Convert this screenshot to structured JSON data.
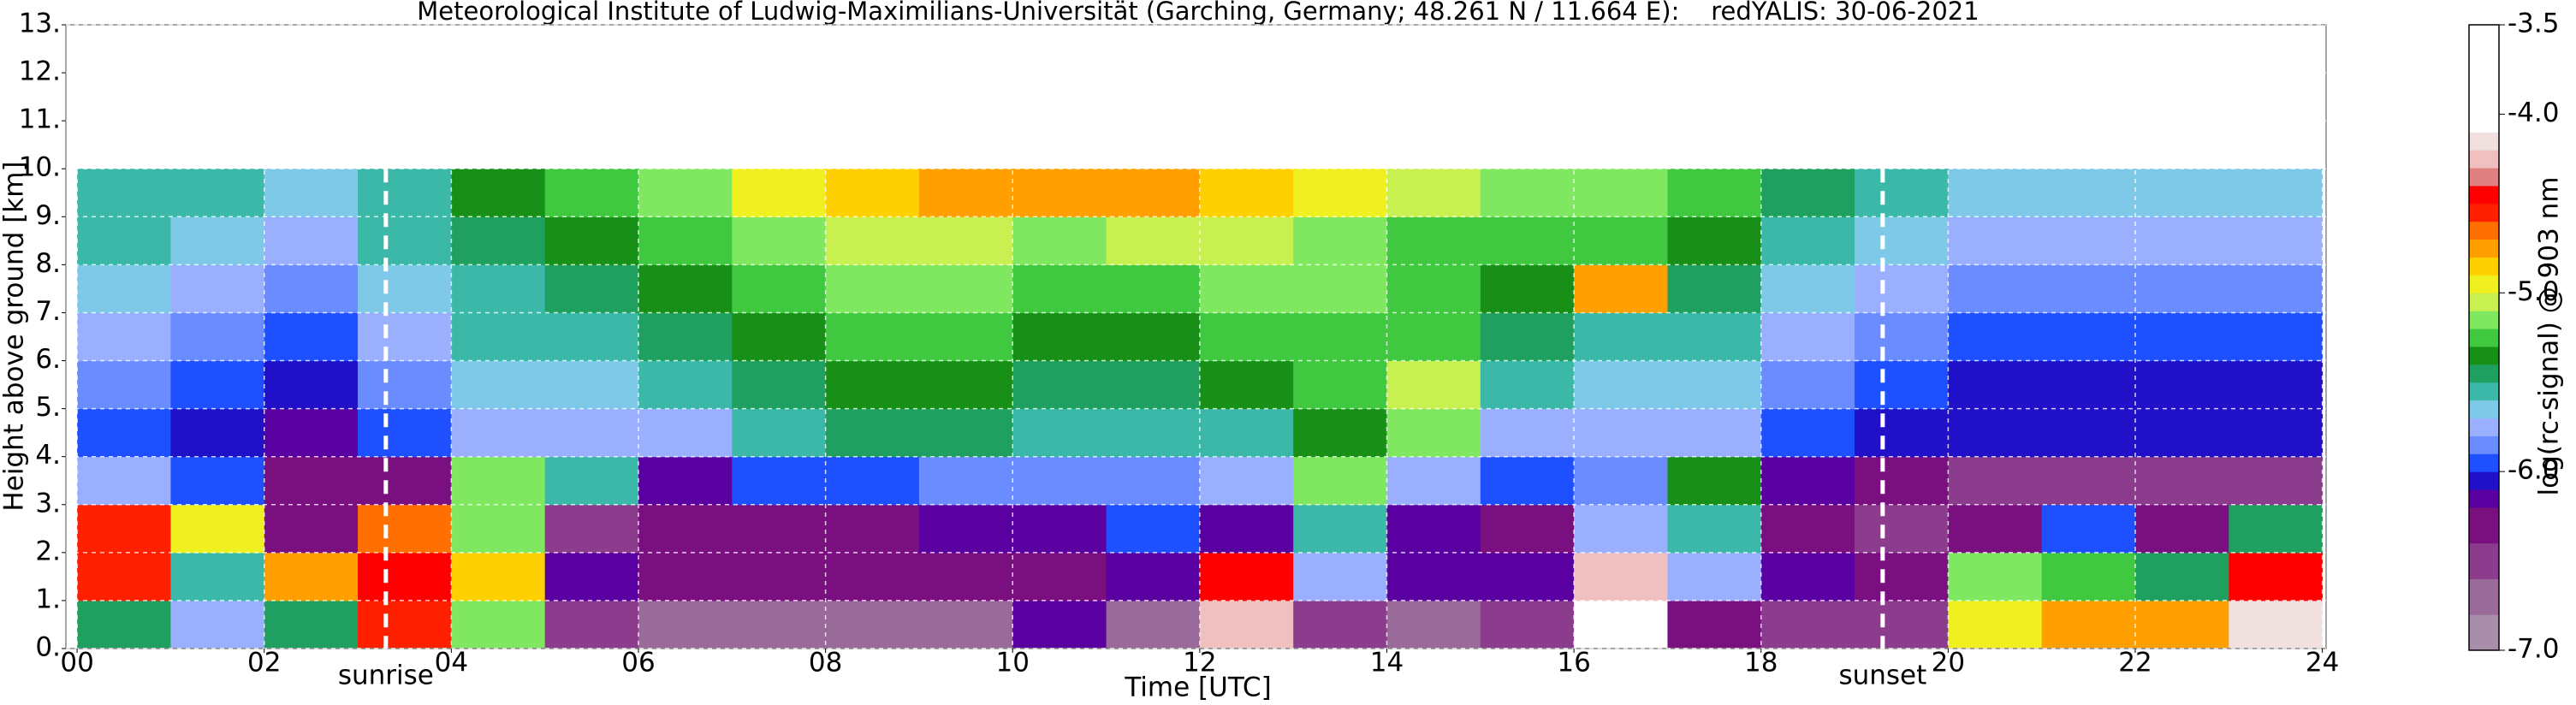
{
  "chart_data": {
    "type": "heatmap",
    "title": "Meteorological Institute of Ludwig-Maximilians-Universität (Garching, Germany; 48.261 N / 11.664 E):    redYALIS: 30-06-2021",
    "xlabel": "Time [UTC]",
    "ylabel": "Height above ground [km]",
    "colorbar_label": "log(rc-signal) @ 903 nm",
    "xlim": [
      -0.12,
      24.04
    ],
    "ylim": [
      0,
      13
    ],
    "xticks": [
      {
        "value": 0,
        "label": "00"
      },
      {
        "value": 2,
        "label": "02"
      },
      {
        "value": 4,
        "label": "04"
      },
      {
        "value": 6,
        "label": "06"
      },
      {
        "value": 8,
        "label": "08"
      },
      10,
      12,
      14,
      16,
      18,
      20,
      22,
      24
    ],
    "yticks": [
      {
        "value": 0,
        "label": "0."
      },
      {
        "value": 1,
        "label": "1."
      },
      {
        "value": 2,
        "label": "2."
      },
      {
        "value": 3,
        "label": "3."
      },
      {
        "value": 4,
        "label": "4."
      },
      {
        "value": 5,
        "label": "5."
      },
      {
        "value": 6,
        "label": "6."
      },
      {
        "value": 7,
        "label": "7."
      },
      {
        "value": 8,
        "label": "8."
      },
      {
        "value": 9,
        "label": "9."
      },
      {
        "value": 10,
        "label": "10."
      },
      {
        "value": 11,
        "label": "11."
      },
      {
        "value": 12,
        "label": "12."
      },
      {
        "value": 13,
        "label": "13."
      }
    ],
    "grid": true,
    "clim": [
      -7.0,
      -3.5
    ],
    "cticks": [
      {
        "value": -3.5,
        "label": "-3.5"
      },
      {
        "value": -4.0,
        "label": "-4.0"
      },
      {
        "value": -5.0,
        "label": "-5.0"
      },
      {
        "value": -6.0,
        "label": "-6.0"
      },
      {
        "value": -7.0,
        "label": "-7.0"
      }
    ],
    "colorscale": [
      [
        -7.0,
        "#a88ea8"
      ],
      [
        -6.8,
        "#9a6a9a"
      ],
      [
        -6.6,
        "#8c3c8c"
      ],
      [
        -6.4,
        "#7a1080"
      ],
      [
        -6.2,
        "#5a00a0"
      ],
      [
        -6.1,
        "#2010c8"
      ],
      [
        -6.0,
        "#1e50ff"
      ],
      [
        -5.9,
        "#6a8cff"
      ],
      [
        -5.8,
        "#9ab0ff"
      ],
      [
        -5.7,
        "#7ec8e8"
      ],
      [
        -5.6,
        "#3cb8a8"
      ],
      [
        -5.5,
        "#20a060"
      ],
      [
        -5.4,
        "#189018"
      ],
      [
        -5.3,
        "#40c840"
      ],
      [
        -5.2,
        "#80e860"
      ],
      [
        -5.1,
        "#c8f050"
      ],
      [
        -5.0,
        "#f0f020"
      ],
      [
        -4.9,
        "#ffd000"
      ],
      [
        -4.8,
        "#ffa000"
      ],
      [
        -4.7,
        "#ff7000"
      ],
      [
        -4.6,
        "#ff2000"
      ],
      [
        -4.5,
        "#ff0000"
      ],
      [
        -4.4,
        "#e08080"
      ],
      [
        -4.3,
        "#f0c0c0"
      ],
      [
        -4.2,
        "#f0e0e0"
      ],
      [
        -4.1,
        "#ffffff"
      ]
    ],
    "x": [
      0,
      1,
      2,
      3,
      4,
      5,
      6,
      7,
      8,
      9,
      10,
      11,
      12,
      13,
      14,
      15,
      16,
      17,
      18,
      19,
      20,
      21,
      22,
      23,
      24
    ],
    "y": [
      0,
      1,
      2,
      3,
      4,
      5,
      6,
      7,
      8,
      9,
      10
    ],
    "z": [
      [
        -5.5,
        -5.8,
        -5.5,
        -4.6,
        -5.2,
        -6.6,
        -6.7,
        -6.7,
        -6.7,
        -6.7,
        -6.2,
        -6.7,
        -4.3,
        -6.6,
        -6.7,
        -6.6,
        -4.0,
        -6.4,
        -6.6,
        -6.6,
        -5.0,
        -4.8,
        -4.8,
        -4.2
      ],
      [
        -4.6,
        -5.6,
        -4.8,
        -4.5,
        -4.9,
        -6.2,
        -6.3,
        -6.3,
        -6.3,
        -6.3,
        -6.3,
        -6.2,
        -4.5,
        -5.8,
        -6.2,
        -6.2,
        -4.3,
        -5.8,
        -6.2,
        -6.3,
        -5.2,
        -5.3,
        -5.5,
        -4.5
      ],
      [
        -4.6,
        -5.0,
        -6.4,
        -4.7,
        -5.2,
        -6.5,
        -6.4,
        -6.4,
        -6.3,
        -6.2,
        -6.2,
        -6.0,
        -6.2,
        -5.6,
        -6.2,
        -6.3,
        -5.8,
        -5.6,
        -6.3,
        -6.6,
        -6.4,
        -6.0,
        -6.4,
        -5.5
      ],
      [
        -5.8,
        -6.0,
        -6.4,
        -6.3,
        -5.2,
        -5.6,
        -6.2,
        -6.0,
        -6.0,
        -5.9,
        -5.9,
        -5.9,
        -5.8,
        -5.2,
        -5.8,
        -6.0,
        -5.9,
        -5.4,
        -6.2,
        -6.4,
        -6.6,
        -6.6,
        -6.6,
        -6.6
      ],
      [
        -6.0,
        -6.1,
        -6.2,
        -6.0,
        -5.8,
        -5.8,
        -5.8,
        -5.6,
        -5.5,
        -5.5,
        -5.6,
        -5.6,
        -5.6,
        -5.4,
        -5.2,
        -5.8,
        -5.8,
        -5.8,
        -6.0,
        -6.1,
        -6.1,
        -6.1,
        -6.1,
        -6.1
      ],
      [
        -5.9,
        -6.0,
        -6.1,
        -5.9,
        -5.7,
        -5.7,
        -5.6,
        -5.5,
        -5.4,
        -5.4,
        -5.5,
        -5.5,
        -5.4,
        -5.3,
        -5.1,
        -5.6,
        -5.7,
        -5.7,
        -5.9,
        -6.0,
        -6.1,
        -6.1,
        -6.1,
        -6.1
      ],
      [
        -5.8,
        -5.9,
        -6.0,
        -5.8,
        -5.6,
        -5.6,
        -5.5,
        -5.4,
        -5.3,
        -5.3,
        -5.4,
        -5.4,
        -5.3,
        -5.3,
        -5.3,
        -5.5,
        -5.6,
        -5.6,
        -5.8,
        -5.9,
        -6.0,
        -6.0,
        -6.0,
        -6.0
      ],
      [
        -5.7,
        -5.8,
        -5.9,
        -5.7,
        -5.6,
        -5.5,
        -5.4,
        -5.3,
        -5.2,
        -5.2,
        -5.3,
        -5.3,
        -5.2,
        -5.2,
        -5.3,
        -5.4,
        -4.8,
        -5.5,
        -5.7,
        -5.8,
        -5.9,
        -5.9,
        -5.9,
        -5.9
      ],
      [
        -5.6,
        -5.7,
        -5.8,
        -5.6,
        -5.5,
        -5.4,
        -5.3,
        -5.2,
        -5.1,
        -5.1,
        -5.2,
        -5.1,
        -5.1,
        -5.2,
        -5.3,
        -5.3,
        -5.3,
        -5.4,
        -5.6,
        -5.7,
        -5.8,
        -5.8,
        -5.8,
        -5.8
      ],
      [
        -5.6,
        -5.6,
        -5.7,
        -5.6,
        -5.4,
        -5.3,
        -5.2,
        -5.0,
        -4.9,
        -4.8,
        -4.8,
        -4.8,
        -4.9,
        -5.0,
        -5.1,
        -5.2,
        -5.2,
        -5.3,
        -5.5,
        -5.6,
        -5.7,
        -5.7,
        -5.7,
        -5.7
      ]
    ],
    "vlines": [
      {
        "text": "sunrise",
        "x": 3.3
      },
      {
        "text": "sunset",
        "x": 19.3
      }
    ]
  }
}
